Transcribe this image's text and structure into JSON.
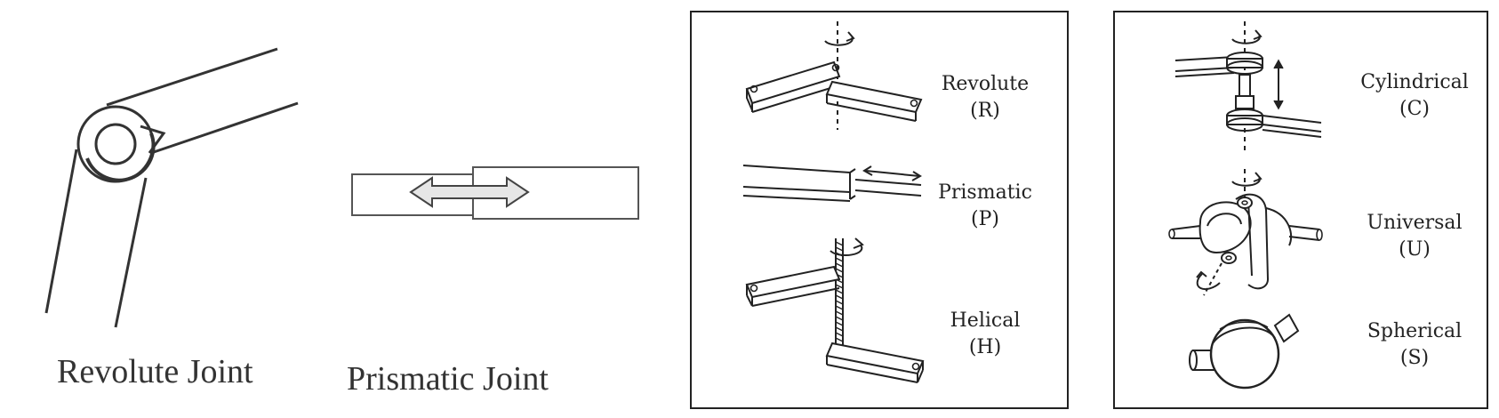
{
  "left_figure": {
    "revolute_caption": "Revolute Joint",
    "prismatic_caption": "Prismatic Joint"
  },
  "box_middle": {
    "joints": [
      {
        "name": "Revolute",
        "symbol": "(R)",
        "icon": "revolute-joint-icon"
      },
      {
        "name": "Prismatic",
        "symbol": "(P)",
        "icon": "prismatic-joint-icon"
      },
      {
        "name": "Helical",
        "symbol": "(H)",
        "icon": "helical-joint-icon"
      }
    ]
  },
  "box_right": {
    "joints": [
      {
        "name": "Cylindrical",
        "symbol": "(C)",
        "icon": "cylindrical-joint-icon"
      },
      {
        "name": "Universal",
        "symbol": "(U)",
        "icon": "universal-joint-icon"
      },
      {
        "name": "Spherical",
        "symbol": "(S)",
        "icon": "spherical-joint-icon"
      }
    ]
  },
  "colors": {
    "line": "#222222",
    "arrow_fill": "#e6e6e6",
    "box_border": "#222222"
  }
}
